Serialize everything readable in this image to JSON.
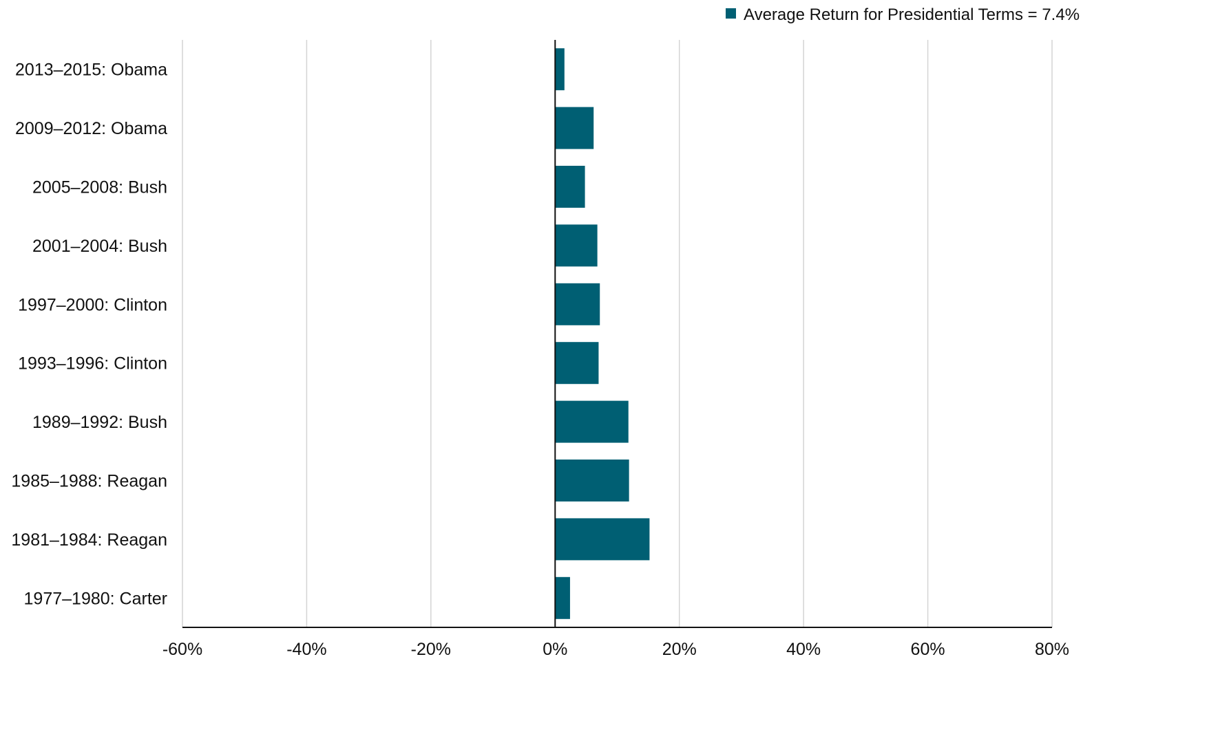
{
  "chart_data": {
    "type": "bar",
    "orientation": "horizontal",
    "categories": [
      "2013–2015: Obama",
      "2009–2012: Obama",
      "2005–2008: Bush",
      "2001–2004: Bush",
      "1997–2000: Clinton",
      "1993–1996: Clinton",
      "1989–1992: Bush",
      "1985–1988: Reagan",
      "1981–1984: Reagan",
      "1977–1980: Carter"
    ],
    "series": [
      {
        "name": "Average Return for Presidential Terms = 7.4%",
        "color": "#005f73",
        "values": [
          1.5,
          6.2,
          4.8,
          6.8,
          7.2,
          7.0,
          11.8,
          11.9,
          15.2,
          2.4
        ]
      }
    ],
    "xlim": [
      -60,
      80
    ],
    "xticks": [
      -60,
      -40,
      -20,
      0,
      20,
      40,
      60,
      80
    ],
    "xtick_labels": [
      "-60%",
      "-40%",
      "-20%",
      "0%",
      "20%",
      "40%",
      "60%",
      "80%"
    ],
    "grid": true,
    "legend_position": "top-right",
    "title": "",
    "xlabel": "",
    "ylabel": ""
  }
}
